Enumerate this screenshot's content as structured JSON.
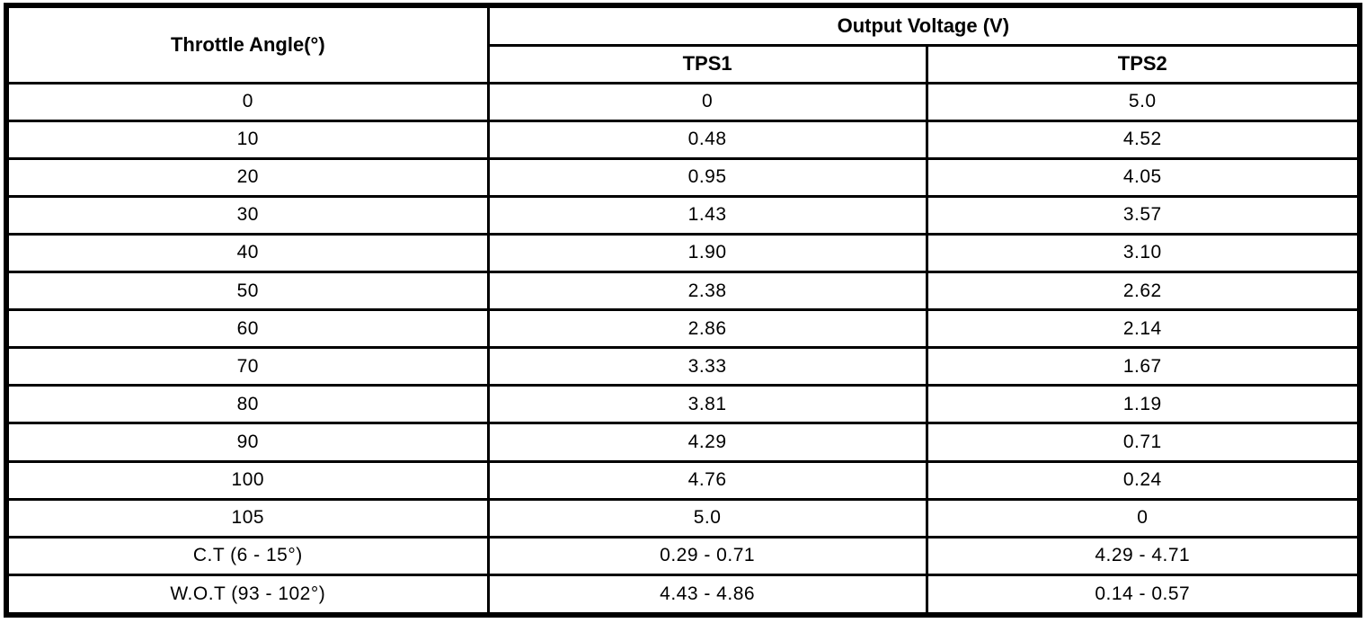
{
  "colors": {
    "border": "#000000",
    "background": "#ffffff",
    "text": "#000000"
  },
  "table": {
    "angle_header": "Throttle Angle(°)",
    "group_header": "Output Voltage (V)",
    "sub_headers": {
      "tps1": "TPS1",
      "tps2": "TPS2"
    },
    "rows": [
      {
        "angle": "0",
        "tps1": "0",
        "tps2": "5.0"
      },
      {
        "angle": "10",
        "tps1": "0.48",
        "tps2": "4.52"
      },
      {
        "angle": "20",
        "tps1": "0.95",
        "tps2": "4.05"
      },
      {
        "angle": "30",
        "tps1": "1.43",
        "tps2": "3.57"
      },
      {
        "angle": "40",
        "tps1": "1.90",
        "tps2": "3.10"
      },
      {
        "angle": "50",
        "tps1": "2.38",
        "tps2": "2.62"
      },
      {
        "angle": "60",
        "tps1": "2.86",
        "tps2": "2.14"
      },
      {
        "angle": "70",
        "tps1": "3.33",
        "tps2": "1.67"
      },
      {
        "angle": "80",
        "tps1": "3.81",
        "tps2": "1.19"
      },
      {
        "angle": "90",
        "tps1": "4.29",
        "tps2": "0.71"
      },
      {
        "angle": "100",
        "tps1": "4.76",
        "tps2": "0.24"
      },
      {
        "angle": "105",
        "tps1": "5.0",
        "tps2": "0"
      },
      {
        "angle": "C.T (6 - 15°)",
        "tps1": "0.29 - 0.71",
        "tps2": "4.29 - 4.71"
      },
      {
        "angle": "W.O.T (93 - 102°)",
        "tps1": "4.43 - 4.86",
        "tps2": "0.14 - 0.57"
      }
    ]
  }
}
